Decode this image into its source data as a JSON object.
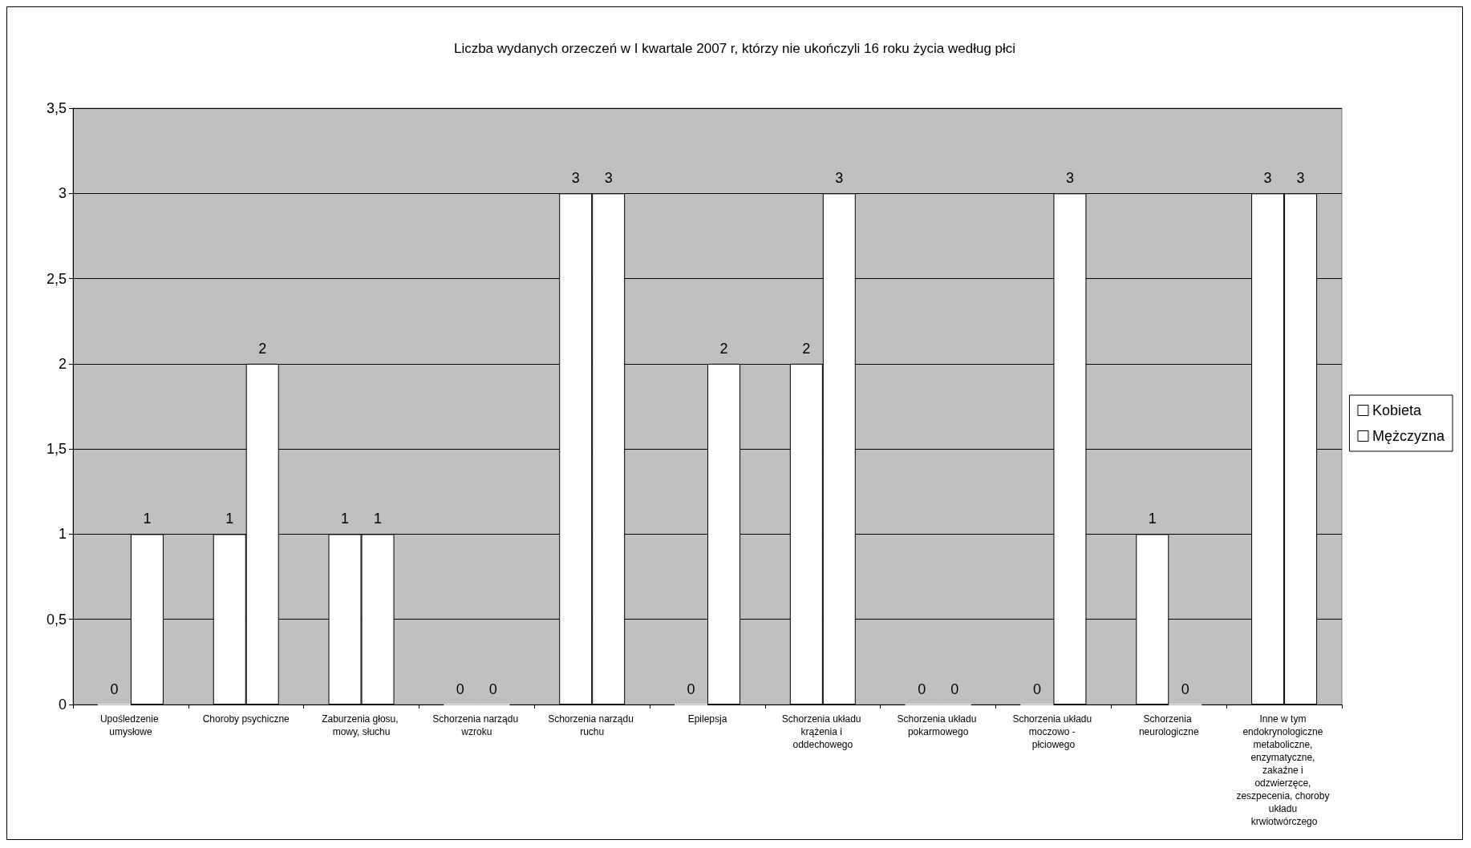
{
  "chart_data": {
    "type": "bar",
    "title": "Liczba wydanych orzeczeń w I kwartale 2007 r, którzy nie ukończyli 16 roku życia według płci",
    "categories": [
      "Upośledzenie umysłowe",
      "Choroby psychiczne",
      "Zaburzenia głosu, mowy, słuchu",
      "Schorzenia narządu wzroku",
      "Schorzenia narządu ruchu",
      "Epilepsja",
      "Schorzenia układu krążenia i oddechowego",
      "Schorzenia układu pokarmowego",
      "Schorzenia układu moczowo - płciowego",
      "Schorzenia neurologiczne",
      "Inne w tym endokrynologiczne metaboliczne, enzymatyczne, zakaźne i odzwierzęce, zeszpecenia, choroby układu krwiotwórczego"
    ],
    "series": [
      {
        "name": "Kobieta",
        "color": "#ffffff",
        "values": [
          0,
          1,
          1,
          0,
          3,
          0,
          2,
          0,
          0,
          1,
          3
        ]
      },
      {
        "name": "Mężczyzna",
        "color": "#ffffff",
        "values": [
          1,
          2,
          1,
          0,
          3,
          2,
          3,
          0,
          3,
          0,
          3
        ]
      }
    ],
    "ylim": [
      0,
      3.5
    ],
    "yticks": [
      0,
      {
        "value": 0.5,
        "label": "0,5"
      },
      1,
      {
        "value": 1.5,
        "label": "1,5"
      },
      2,
      {
        "value": 2.5,
        "label": "2,5"
      },
      3,
      {
        "value": 3.5,
        "label": "3,5"
      }
    ],
    "grid": "y",
    "legend": "right",
    "data_labels": true
  }
}
